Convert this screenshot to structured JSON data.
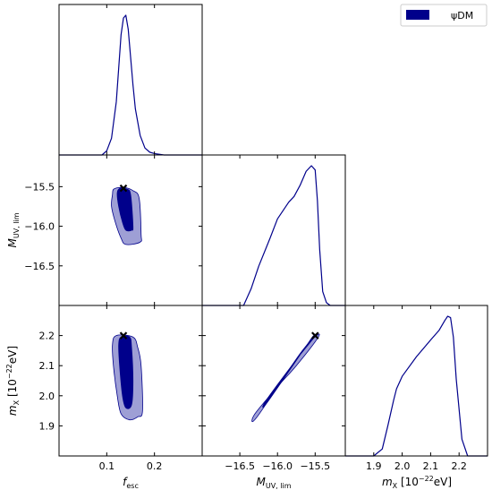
{
  "chart_data": {
    "type": "corner",
    "legend": {
      "placement": "top-right",
      "label": "ψDM"
    },
    "colors": {
      "inner": "#00008b",
      "outer": "#9495d0",
      "line": "#00008b",
      "marker": "#000000"
    },
    "parameters": [
      {
        "key": "fesc",
        "label_main": "f",
        "label_sub": "esc",
        "range": [
          0,
          0.3
        ],
        "ticks": [
          0.1,
          0.2
        ],
        "tick_labels": [
          "0.1",
          "0.2"
        ]
      },
      {
        "key": "muv",
        "label_main": "M",
        "label_sub": "UV, lim",
        "range": [
          -17.0,
          -15.1
        ],
        "ticks": [
          -16.5,
          -16.0,
          -15.5
        ],
        "tick_labels": [
          "−16.5",
          "−16.0",
          "−15.5"
        ]
      },
      {
        "key": "mx",
        "label_main": "m",
        "label_sub": "X",
        "label_suffix": " [10",
        "label_sup": "−22",
        "label_end": "eV]",
        "range": [
          1.8,
          2.3
        ],
        "ticks": [
          1.9,
          2.0,
          2.1,
          2.2
        ],
        "tick_labels": [
          "1.9",
          "2.0",
          "2.1",
          "2.2"
        ]
      }
    ],
    "marginals": [
      {
        "param": "fesc",
        "x": [
          0.0,
          0.09,
          0.1,
          0.11,
          0.12,
          0.125,
          0.13,
          0.135,
          0.14,
          0.145,
          0.15,
          0.155,
          0.16,
          0.17,
          0.18,
          0.19,
          0.2,
          0.22,
          0.25,
          0.3
        ],
        "y": [
          0.0,
          0.0,
          0.03,
          0.12,
          0.38,
          0.62,
          0.86,
          0.98,
          1.0,
          0.9,
          0.7,
          0.5,
          0.33,
          0.14,
          0.05,
          0.02,
          0.01,
          0.0,
          0.0,
          0.0
        ]
      },
      {
        "param": "muv",
        "x": [
          -17.0,
          -16.45,
          -16.35,
          -16.25,
          -16.1,
          -16.0,
          -15.85,
          -15.78,
          -15.7,
          -15.62,
          -15.55,
          -15.5,
          -15.47,
          -15.44,
          -15.4,
          -15.35,
          -15.3,
          -15.1
        ],
        "y": [
          0.0,
          0.0,
          0.12,
          0.28,
          0.48,
          0.62,
          0.74,
          0.78,
          0.86,
          0.96,
          1.0,
          0.97,
          0.75,
          0.4,
          0.1,
          0.02,
          0.0,
          0.0
        ]
      },
      {
        "param": "mx",
        "x": [
          1.8,
          1.9,
          1.93,
          1.95,
          1.97,
          1.98,
          2.0,
          2.05,
          2.1,
          2.13,
          2.15,
          2.16,
          2.17,
          2.18,
          2.19,
          2.21,
          2.23,
          2.3
        ],
        "y": [
          0.0,
          0.0,
          0.05,
          0.22,
          0.4,
          0.48,
          0.57,
          0.71,
          0.83,
          0.9,
          0.97,
          1.0,
          0.99,
          0.85,
          0.55,
          0.12,
          0.0,
          0.0
        ]
      }
    ],
    "joints": [
      {
        "x_param": "fesc",
        "y_param": "muv",
        "outer": [
          [
            0.112,
            -15.6
          ],
          [
            0.115,
            -15.53
          ],
          [
            0.135,
            -15.51
          ],
          [
            0.155,
            -15.55
          ],
          [
            0.168,
            -15.65
          ],
          [
            0.172,
            -16.1
          ],
          [
            0.17,
            -16.2
          ],
          [
            0.14,
            -16.23
          ],
          [
            0.13,
            -16.15
          ],
          [
            0.118,
            -15.95
          ],
          [
            0.11,
            -15.75
          ]
        ],
        "inner": [
          [
            0.122,
            -15.58
          ],
          [
            0.128,
            -15.52
          ],
          [
            0.142,
            -15.53
          ],
          [
            0.15,
            -15.6
          ],
          [
            0.155,
            -16.0
          ],
          [
            0.152,
            -16.05
          ],
          [
            0.14,
            -16.05
          ],
          [
            0.133,
            -15.95
          ],
          [
            0.125,
            -15.75
          ]
        ],
        "marker": [
          0.135,
          -15.52
        ]
      },
      {
        "x_param": "fesc",
        "y_param": "mx",
        "outer": [
          [
            0.112,
            2.17
          ],
          [
            0.12,
            2.2
          ],
          [
            0.155,
            2.195
          ],
          [
            0.165,
            2.16
          ],
          [
            0.172,
            2.1
          ],
          [
            0.175,
            1.95
          ],
          [
            0.165,
            1.93
          ],
          [
            0.148,
            1.92
          ],
          [
            0.13,
            1.94
          ],
          [
            0.122,
            2.0
          ],
          [
            0.114,
            2.1
          ]
        ],
        "inner": [
          [
            0.125,
            2.17
          ],
          [
            0.13,
            2.195
          ],
          [
            0.148,
            2.195
          ],
          [
            0.152,
            2.16
          ],
          [
            0.155,
            2.05
          ],
          [
            0.152,
            1.97
          ],
          [
            0.14,
            1.96
          ],
          [
            0.133,
            2.0
          ],
          [
            0.127,
            2.1
          ]
        ],
        "marker": [
          0.135,
          2.2
        ]
      },
      {
        "x_param": "muv",
        "y_param": "mx",
        "outer": [
          [
            -16.3,
            1.94
          ],
          [
            -16.27,
            1.93
          ],
          [
            -15.7,
            2.14
          ],
          [
            -15.48,
            2.2
          ],
          [
            -15.47,
            2.19
          ],
          [
            -15.75,
            2.1
          ],
          [
            -16.0,
            2.03
          ]
        ],
        "inner": [
          [
            -16.15,
            1.985
          ],
          [
            -16.13,
            1.98
          ],
          [
            -15.62,
            2.165
          ],
          [
            -15.52,
            2.2
          ],
          [
            -15.51,
            2.195
          ],
          [
            -15.75,
            2.12
          ]
        ],
        "marker": [
          -15.5,
          2.2
        ]
      }
    ]
  }
}
